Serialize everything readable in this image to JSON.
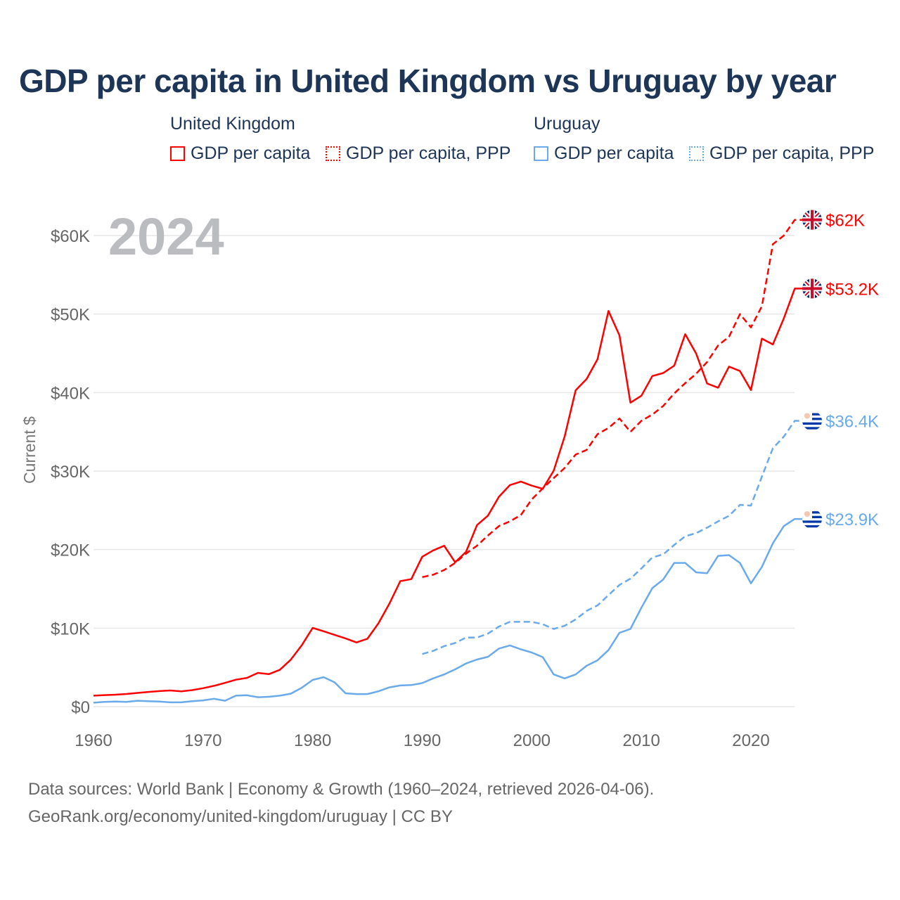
{
  "title": "GDP per capita in United Kingdom vs Uruguay by year",
  "legend": {
    "groups": [
      {
        "name": "United Kingdom",
        "items": [
          "GDP per capita",
          "GDP per capita, PPP"
        ]
      },
      {
        "name": "Uruguay",
        "items": [
          "GDP per capita",
          "GDP per capita, PPP"
        ]
      }
    ]
  },
  "year_label": "2024",
  "source_line1": "Data sources: World Bank | Economy & Growth (1960–2024, retrieved 2026-04-06).",
  "source_line2": "GeoRank.org/economy/united-kingdom/uruguay | CC BY",
  "colors": {
    "uk": "#ff0000",
    "uruguay": "#6aaaea"
  },
  "chart_data": {
    "type": "line",
    "title": "GDP per capita in United Kingdom vs Uruguay by year",
    "xlabel": "",
    "ylabel": "Current $",
    "xlim": [
      1960,
      2024
    ],
    "ylim": [
      0,
      62000
    ],
    "xticks": [
      1960,
      1970,
      1980,
      1990,
      2000,
      2010,
      2020
    ],
    "yticks": [
      {
        "v": 0,
        "label": "$0"
      },
      {
        "v": 10000,
        "label": "$10K"
      },
      {
        "v": 20000,
        "label": "$20K"
      },
      {
        "v": 30000,
        "label": "$30K"
      },
      {
        "v": 40000,
        "label": "$40K"
      },
      {
        "v": 50000,
        "label": "$50K"
      },
      {
        "v": 60000,
        "label": "$60K"
      }
    ],
    "grid": true,
    "series": [
      {
        "name": "United Kingdom GDP per capita",
        "country": "uk",
        "dashed": false,
        "start": 1960,
        "end_label": "$53.2K",
        "values": [
          1398,
          1472,
          1526,
          1613,
          1749,
          1874,
          1980,
          2059,
          1952,
          2101,
          2348,
          2650,
          3030,
          3426,
          3666,
          4300,
          4138,
          4682,
          5977,
          7805,
          10032,
          9599,
          9146,
          8692,
          8180,
          8652,
          10611,
          13119,
          15987,
          16239,
          19095,
          19900,
          20487,
          18389,
          19709,
          23123,
          24332,
          26734,
          28214,
          28669,
          28150,
          27744,
          30057,
          34420,
          40290,
          41732,
          44252,
          50397,
          47287,
          38713,
          39599,
          42110,
          42497,
          43426,
          47440,
          44964,
          41147,
          40622,
          43306,
          42747,
          40318,
          46870,
          46125,
          49464,
          53246
        ]
      },
      {
        "name": "United Kingdom GDP per capita, PPP",
        "country": "uk",
        "dashed": true,
        "start": 1990,
        "end_label": "$62K",
        "values": [
          16500,
          16800,
          17400,
          18300,
          19500,
          20500,
          21800,
          23000,
          23600,
          24400,
          26400,
          27800,
          29100,
          30400,
          32100,
          32700,
          34700,
          35500,
          36700,
          35000,
          36400,
          37200,
          38300,
          39900,
          41200,
          42400,
          43900,
          46000,
          47100,
          50000,
          48300,
          51000,
          58900,
          60000,
          62000
        ]
      },
      {
        "name": "Uruguay GDP per capita",
        "country": "uruguay",
        "dashed": false,
        "start": 1960,
        "end_label": "$23.9K",
        "values": [
          500,
          600,
          650,
          600,
          750,
          700,
          650,
          550,
          550,
          700,
          800,
          1000,
          750,
          1400,
          1450,
          1200,
          1250,
          1400,
          1650,
          2400,
          3400,
          3750,
          3100,
          1700,
          1600,
          1600,
          1950,
          2450,
          2700,
          2750,
          3000,
          3600,
          4100,
          4750,
          5500,
          6000,
          6350,
          7400,
          7800,
          7300,
          6900,
          6300,
          4100,
          3600,
          4100,
          5200,
          5900,
          7200,
          9400,
          9900,
          12600,
          15100,
          16200,
          18300,
          18300,
          17100,
          17000,
          19200,
          19300,
          18300,
          15700,
          17800,
          20800,
          23000,
          23900
        ]
      },
      {
        "name": "Uruguay GDP per capita, PPP",
        "country": "uruguay",
        "dashed": true,
        "start": 1990,
        "end_label": "$36.4K",
        "values": [
          6700,
          7100,
          7700,
          8100,
          8800,
          8800,
          9300,
          10200,
          10800,
          10800,
          10800,
          10500,
          9900,
          10300,
          11100,
          12200,
          12900,
          14200,
          15500,
          16300,
          17600,
          19000,
          19400,
          20600,
          21700,
          22100,
          22800,
          23600,
          24300,
          25700,
          25600,
          29300,
          32900,
          34400,
          36400
        ]
      }
    ]
  }
}
